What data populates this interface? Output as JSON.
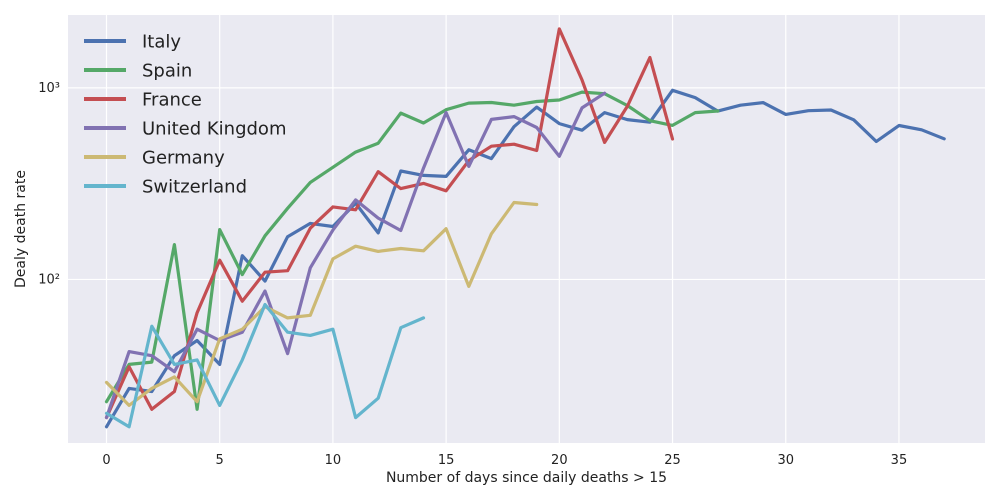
{
  "chart_data": {
    "type": "line",
    "xlabel": "Number of days since daily deaths > 15",
    "ylabel": "Dealy death rate",
    "xlim": [
      -1.7,
      38.8
    ],
    "ylim": [
      14,
      2400
    ],
    "yscale": "log",
    "x_ticks": [
      0,
      5,
      10,
      15,
      20,
      25,
      30,
      35
    ],
    "x_tick_labels": [
      "0",
      "5",
      "10",
      "15",
      "20",
      "25",
      "30",
      "35"
    ],
    "y_ticks": [
      100,
      1000
    ],
    "y_tick_labels": [
      "10²",
      "10³"
    ],
    "grid": true,
    "legend_position": "top-left",
    "series": [
      {
        "name": "Italy",
        "color": "#4c72b0",
        "x": [
          0,
          1,
          2,
          3,
          4,
          5,
          6,
          7,
          8,
          9,
          10,
          11,
          12,
          13,
          14,
          15,
          16,
          17,
          18,
          19,
          20,
          21,
          22,
          23,
          24,
          25,
          26,
          27,
          28,
          29,
          30,
          31,
          32,
          33,
          34,
          35,
          36,
          37
        ],
        "values": [
          17,
          27,
          26,
          40,
          48,
          36,
          133,
          98,
          167,
          196,
          189,
          250,
          175,
          368,
          349,
          345,
          475,
          427,
          627,
          793,
          651,
          601,
          743,
          683,
          662,
          971,
          889,
          756,
          812,
          837,
          727,
          760,
          766,
          681,
          525,
          636,
          604,
          542
        ]
      },
      {
        "name": "Spain",
        "color": "#55a868",
        "x": [
          0,
          1,
          2,
          3,
          4,
          5,
          6,
          7,
          8,
          9,
          10,
          11,
          12,
          13,
          14,
          15,
          16,
          17,
          18,
          19,
          20,
          21,
          22,
          23,
          24,
          25,
          26,
          27
        ],
        "values": [
          23,
          36,
          37,
          152,
          21,
          182,
          106,
          169,
          235,
          321,
          385,
          462,
          514,
          738,
          655,
          769,
          832,
          838,
          812,
          849,
          864,
          950,
          932,
          809,
          674,
          637,
          743,
          757
        ]
      },
      {
        "name": "France",
        "color": "#c44e52",
        "x": [
          0,
          1,
          2,
          3,
          4,
          5,
          6,
          7,
          8,
          9,
          10,
          11,
          12,
          13,
          14,
          15,
          16,
          17,
          18,
          19,
          20,
          21,
          22,
          23,
          24,
          25
        ],
        "values": [
          19,
          35,
          21,
          26,
          67,
          126,
          77,
          109,
          111,
          185,
          239,
          231,
          365,
          298,
          317,
          290,
          417,
          496,
          508,
          471,
          2030,
          1100,
          519,
          800,
          1440,
          541
        ]
      },
      {
        "name": "United Kingdom",
        "color": "#8172b2",
        "x": [
          0,
          1,
          2,
          3,
          4,
          5,
          6,
          7,
          8,
          9,
          10,
          11,
          12,
          13,
          14,
          15,
          16,
          17,
          18,
          19,
          20,
          21,
          22
        ],
        "values": [
          19,
          42,
          40,
          33,
          55,
          48,
          53,
          87,
          41,
          115,
          181,
          260,
          209,
          180,
          381,
          743,
          389,
          684,
          708,
          621,
          439,
          786,
          938
        ]
      },
      {
        "name": "Germany",
        "color": "#ccb974",
        "x": [
          0,
          1,
          2,
          3,
          4,
          5,
          6,
          7,
          8,
          9,
          10,
          11,
          12,
          13,
          14,
          15,
          16,
          17,
          18,
          19
        ],
        "values": [
          29,
          22,
          27,
          31,
          23,
          49,
          55,
          72,
          63,
          65,
          128,
          149,
          140,
          145,
          141,
          184,
          92,
          173,
          252,
          246
        ]
      },
      {
        "name": "Switzerland",
        "color": "#64b5cd",
        "x": [
          0,
          1,
          2,
          3,
          4,
          5,
          6,
          7,
          8,
          9,
          10,
          11,
          12,
          13,
          14
        ],
        "values": [
          20,
          17,
          57,
          36,
          38,
          22,
          38,
          74,
          53,
          51,
          55,
          19,
          24,
          56,
          63
        ]
      }
    ]
  }
}
